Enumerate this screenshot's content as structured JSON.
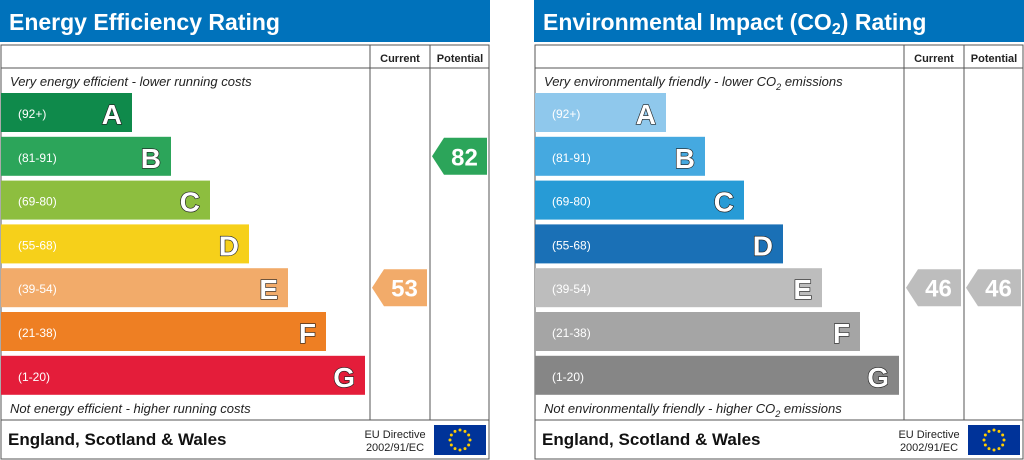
{
  "chart_data": [
    {
      "type": "bar",
      "title": "Energy Efficiency Rating",
      "columns": [
        "Current",
        "Potential"
      ],
      "top_note": "Very energy efficient - lower running costs",
      "bottom_note": "Not energy efficient - higher running costs",
      "bands": [
        {
          "range": "(92+)",
          "letter": "A",
          "color": "#0f8a4b"
        },
        {
          "range": "(81-91)",
          "letter": "B",
          "color": "#2ca55a"
        },
        {
          "range": "(69-80)",
          "letter": "C",
          "color": "#8dbe3f"
        },
        {
          "range": "(55-68)",
          "letter": "D",
          "color": "#f6d01a"
        },
        {
          "range": "(39-54)",
          "letter": "E",
          "color": "#f2ab6a"
        },
        {
          "range": "(21-38)",
          "letter": "F",
          "color": "#ee7f23"
        },
        {
          "range": "(1-20)",
          "letter": "G",
          "color": "#e41d3a"
        }
      ],
      "current": {
        "value": 53,
        "band": "E",
        "color": "#f2ab6a"
      },
      "potential": {
        "value": 82,
        "band": "B",
        "color": "#2ca55a"
      },
      "footer": {
        "region": "England, Scotland & Wales",
        "directive_line1": "EU Directive",
        "directive_line2": "2002/91/EC"
      },
      "header_color": "#0072bb"
    },
    {
      "type": "bar",
      "title": "Environmental Impact (CO2) Rating",
      "title_parts": {
        "pre": "Environmental Impact (CO",
        "sub": "2",
        "post": ") Rating"
      },
      "columns": [
        "Current",
        "Potential"
      ],
      "top_note": "Very environmentally friendly - lower CO2 emissions",
      "top_note_parts": {
        "pre": "Very environmentally friendly - lower CO",
        "sub": "2",
        "post": " emissions"
      },
      "bottom_note": "Not environmentally friendly - higher CO2 emissions",
      "bottom_note_parts": {
        "pre": "Not environmentally friendly - higher CO",
        "sub": "2",
        "post": " emissions"
      },
      "bands": [
        {
          "range": "(92+)",
          "letter": "A",
          "color": "#8fc8ec"
        },
        {
          "range": "(81-91)",
          "letter": "B",
          "color": "#45a9e0"
        },
        {
          "range": "(69-80)",
          "letter": "C",
          "color": "#279bd6"
        },
        {
          "range": "(55-68)",
          "letter": "D",
          "color": "#1a70b6"
        },
        {
          "range": "(39-54)",
          "letter": "E",
          "color": "#bdbdbd"
        },
        {
          "range": "(21-38)",
          "letter": "F",
          "color": "#a5a5a5"
        },
        {
          "range": "(1-20)",
          "letter": "G",
          "color": "#868686"
        }
      ],
      "current": {
        "value": 46,
        "band": "E",
        "color": "#bdbdbd"
      },
      "potential": {
        "value": 46,
        "band": "E",
        "color": "#bdbdbd"
      },
      "footer": {
        "region": "England, Scotland & Wales",
        "directive_line1": "EU Directive",
        "directive_line2": "2002/91/EC"
      },
      "header_color": "#0072bb"
    }
  ]
}
